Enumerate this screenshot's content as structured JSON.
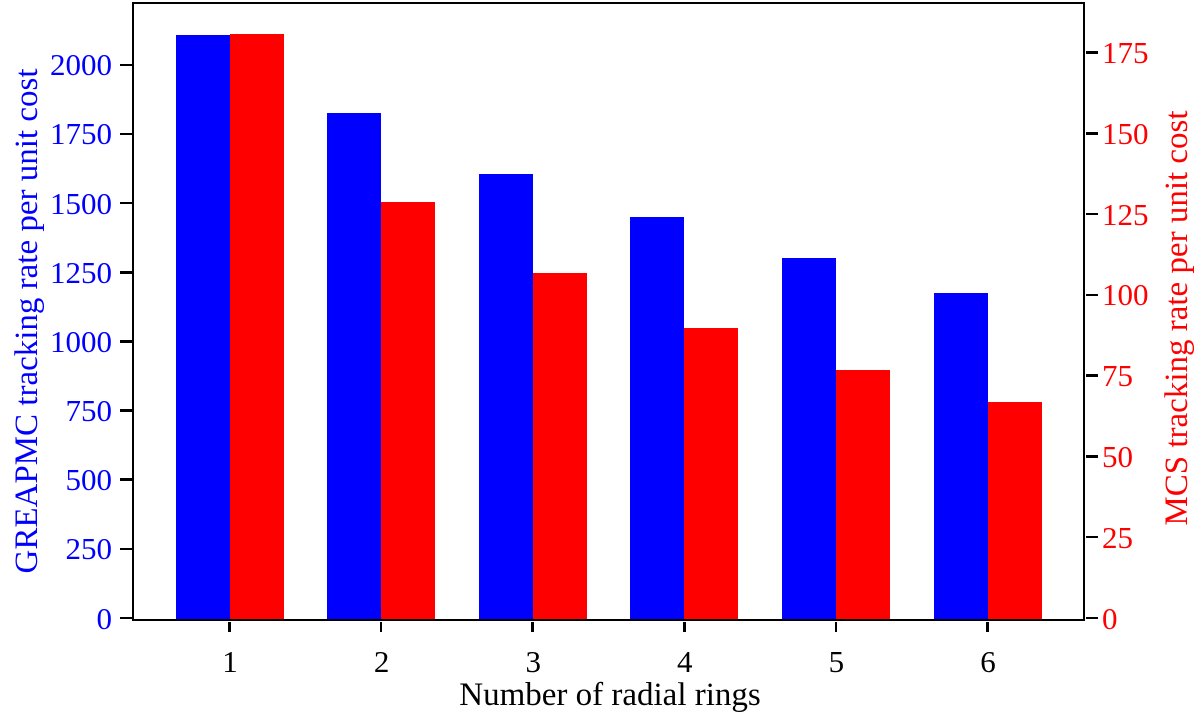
{
  "chart_data": {
    "type": "bar",
    "title": "",
    "categories": [
      "1",
      "2",
      "3",
      "4",
      "5",
      "6"
    ],
    "series": [
      {
        "id": "greapmc",
        "name": "GREAPMC tracking rate per unit cost",
        "axis": "left",
        "color": "#0000ff",
        "values": [
          2110,
          1830,
          1610,
          1455,
          1305,
          1180
        ]
      },
      {
        "id": "mcs",
        "name": "MCS tracking rate per unit cost",
        "axis": "right",
        "color": "#ff0000",
        "values": [
          181,
          129,
          107,
          90,
          77,
          67
        ]
      }
    ],
    "xlabel": "Number of radial rings",
    "ylabel_left": "GREAPMC tracking rate per unit cost",
    "ylabel_right": "MCS tracking rate per unit cost",
    "ylim_left": [
      0,
      2220
    ],
    "ylim_right": [
      0,
      190
    ],
    "yticks_left": [
      "0",
      "250",
      "500",
      "750",
      "1000",
      "1250",
      "1500",
      "1750",
      "2000"
    ],
    "yticks_right": [
      "0",
      "25",
      "50",
      "75",
      "100",
      "125",
      "150",
      "175"
    ],
    "grid": false,
    "legend": "none",
    "colors": {
      "left_axis_text": "#0000ff",
      "right_axis_text": "#ff0000",
      "frame": "#000000",
      "xlabel_text": "#000000"
    }
  }
}
